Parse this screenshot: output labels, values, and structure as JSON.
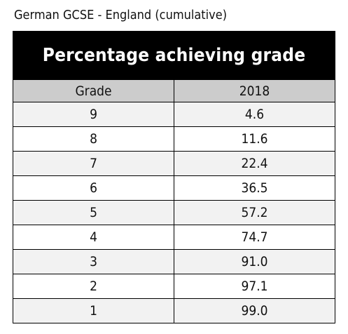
{
  "caption": "German GCSE - England (cumulative)",
  "chart_data": {
    "type": "table",
    "title": "Percentage achieving grade",
    "columns": [
      "Grade",
      "2018"
    ],
    "rows": [
      [
        "9",
        "4.6"
      ],
      [
        "8",
        "11.6"
      ],
      [
        "7",
        "22.4"
      ],
      [
        "6",
        "36.5"
      ],
      [
        "5",
        "57.2"
      ],
      [
        "4",
        "74.7"
      ],
      [
        "3",
        "91.0"
      ],
      [
        "2",
        "97.1"
      ],
      [
        "1",
        "99.0"
      ]
    ]
  }
}
